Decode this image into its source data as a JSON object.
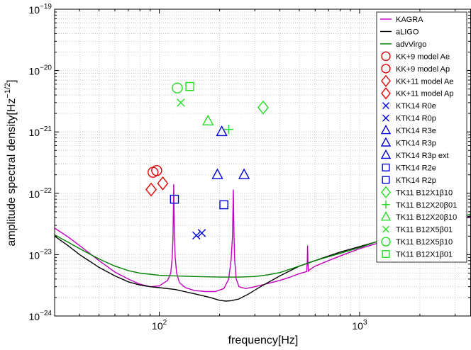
{
  "chart_data": {
    "type": "line",
    "title": "",
    "xlabel": "frequency[Hz]",
    "ylabel": "amplitude spectral density[Hz",
    "ylabel_sup": "−1/2",
    "ylabel_end": "]",
    "xscale": "log",
    "yscale": "log",
    "xlim": [
      30,
      3600
    ],
    "ylim": [
      1e-24,
      1e-19
    ],
    "grid": true,
    "legend_position": "top-right",
    "x_ticks": [
      {
        "value": 100,
        "base": "10",
        "exp": "2"
      },
      {
        "value": 1000,
        "base": "10",
        "exp": "3"
      }
    ],
    "y_ticks": [
      {
        "value": 1e-24,
        "base": "10",
        "exp": "−24"
      },
      {
        "value": 1e-23,
        "base": "10",
        "exp": "−23"
      },
      {
        "value": 1e-22,
        "base": "10",
        "exp": "−22"
      },
      {
        "value": 1e-21,
        "base": "10",
        "exp": "−21"
      },
      {
        "value": 1e-20,
        "base": "10",
        "exp": "−20"
      },
      {
        "value": 1e-19,
        "base": "10",
        "exp": "−19"
      }
    ],
    "series": [
      {
        "name": "KAGRA",
        "kind": "line",
        "color": "#bf00bf",
        "x": [
          30,
          35,
          40,
          50,
          60,
          70,
          80,
          90,
          100,
          110,
          114,
          116,
          117,
          118,
          119,
          120,
          122,
          126,
          135,
          150,
          170,
          190,
          210,
          222,
          228,
          232,
          234,
          236,
          238,
          242,
          250,
          270,
          300,
          350,
          400,
          450,
          500,
          545,
          548,
          550,
          552,
          555,
          560,
          600,
          700,
          800,
          900,
          1000,
          1200,
          1500,
          2000,
          2500,
          3000,
          3600
        ],
        "y": [
          2.7e-23,
          1.95e-23,
          1.4e-23,
          8e-24,
          5.2e-24,
          4e-24,
          3.3e-24,
          3e-24,
          3.1e-24,
          3.8e-24,
          5e-24,
          9e-24,
          2e-23,
          1.4e-22,
          2e-23,
          9e-24,
          5e-24,
          3.5e-24,
          2.9e-24,
          2.6e-24,
          2.5e-24,
          2.5e-24,
          2.8e-24,
          4e-24,
          8e-24,
          2e-23,
          1.15e-22,
          2e-23,
          8e-24,
          4e-24,
          3e-24,
          2.8e-24,
          3e-24,
          3.4e-24,
          3.8e-24,
          4.3e-24,
          4.9e-24,
          5.3e-24,
          8e-24,
          1.4e-23,
          8e-24,
          5.4e-24,
          5.6e-24,
          6.5e-24,
          8e-24,
          9.5e-24,
          1.1e-23,
          1.25e-23,
          1.5e-23,
          1.9e-23,
          2.5e-23,
          3e-23,
          3.5e-23,
          4.2e-23
        ]
      },
      {
        "name": "aLIGO",
        "kind": "line",
        "color": "#000000",
        "x": [
          30,
          35,
          40,
          50,
          60,
          70,
          80,
          90,
          100,
          120,
          150,
          180,
          200,
          215,
          230,
          250,
          280,
          320,
          400,
          500,
          600,
          700,
          800,
          1000,
          1200,
          1500,
          2000,
          2500,
          3000,
          3600
        ],
        "y": [
          2e-23,
          1.4e-23,
          1e-23,
          6.2e-24,
          4.5e-24,
          3.6e-24,
          3.2e-24,
          3e-24,
          2.9e-24,
          2.7e-24,
          2.3e-24,
          2e-24,
          1.8e-24,
          1.75e-24,
          1.78e-24,
          1.9e-24,
          2.3e-24,
          3e-24,
          4.5e-24,
          6.5e-24,
          8e-24,
          9.5e-24,
          1.1e-23,
          1.35e-23,
          1.6e-23,
          1.95e-23,
          2.5e-23,
          3.1e-23,
          3.6e-23,
          4.3e-23
        ]
      },
      {
        "name": "advVirgo",
        "kind": "line",
        "color": "#007f00",
        "x": [
          30,
          35,
          40,
          50,
          60,
          70,
          80,
          100,
          120,
          150,
          200,
          250,
          300,
          350,
          400,
          500,
          600,
          800,
          1000,
          1200,
          1500,
          2000,
          2500,
          3000,
          3600
        ],
        "y": [
          2.1e-23,
          1.6e-23,
          1.25e-23,
          8.5e-24,
          6.5e-24,
          5.5e-24,
          5e-24,
          4.6e-24,
          4.5e-24,
          4.4e-24,
          4.3e-24,
          4.3e-24,
          4.4e-24,
          4.7e-24,
          5.1e-24,
          6.5e-24,
          8e-24,
          1.05e-23,
          1.3e-23,
          1.6e-23,
          2e-23,
          2.6e-23,
          3.2e-23,
          3.8e-23,
          4.6e-23
        ]
      },
      {
        "name": "KK+9 model Ae",
        "kind": "marker",
        "marker": "circle",
        "color": "#e00000",
        "x": [
          93
        ],
        "y": [
          2.2e-22
        ]
      },
      {
        "name": "KK+9 model Ap",
        "kind": "marker",
        "marker": "circle",
        "color": "#e00000",
        "x": [
          97
        ],
        "y": [
          2.35e-22
        ]
      },
      {
        "name": "KK+11 model Ae",
        "kind": "marker",
        "marker": "diamond",
        "color": "#e00000",
        "x": [
          91
        ],
        "y": [
          1.15e-22
        ]
      },
      {
        "name": "KK+11 model Ap",
        "kind": "marker",
        "marker": "diamond",
        "color": "#e00000",
        "x": [
          104
        ],
        "y": [
          1.45e-22
        ]
      },
      {
        "name": "KTK14 R0e",
        "kind": "marker",
        "marker": "x",
        "color": "#0000e0",
        "x": [
          153
        ],
        "y": [
          2.05e-23
        ]
      },
      {
        "name": "KTK14 R0p",
        "kind": "marker",
        "marker": "x",
        "color": "#0000e0",
        "x": [
          163
        ],
        "y": [
          2.25e-23
        ]
      },
      {
        "name": "KTK14 R3e",
        "kind": "marker",
        "marker": "triangle",
        "color": "#0000e0",
        "x": [
          195
        ],
        "y": [
          2e-22
        ]
      },
      {
        "name": "KTK14 R3p",
        "kind": "marker",
        "marker": "triangle",
        "color": "#0000e0",
        "x": [
          205
        ],
        "y": [
          1e-21
        ]
      },
      {
        "name": "KTK14 R3p ext",
        "kind": "marker",
        "marker": "triangle",
        "color": "#0000e0",
        "x": [
          265
        ],
        "y": [
          2e-22
        ]
      },
      {
        "name": "KTK14 R2e",
        "kind": "marker",
        "marker": "square",
        "color": "#0000e0",
        "x": [
          119
        ],
        "y": [
          8e-23
        ]
      },
      {
        "name": "KTK14 R2p",
        "kind": "marker",
        "marker": "square",
        "color": "#0000e0",
        "x": [
          210
        ],
        "y": [
          6.5e-23
        ]
      },
      {
        "name": "TK11 B12X1β10",
        "kind": "marker",
        "marker": "diamond",
        "color": "#22dd22",
        "x": [
          330
        ],
        "y": [
          2.5e-21
        ]
      },
      {
        "name": "TK11 B12X20β01",
        "kind": "marker",
        "marker": "plus",
        "color": "#22dd22",
        "x": [
          222
        ],
        "y": [
          1.1e-21
        ]
      },
      {
        "name": "TK11 B12X20β10",
        "kind": "marker",
        "marker": "triangle",
        "color": "#22dd22",
        "x": [
          175
        ],
        "y": [
          1.5e-21
        ]
      },
      {
        "name": "TK11 B12X5β01",
        "kind": "marker",
        "marker": "x",
        "color": "#22dd22",
        "x": [
          128
        ],
        "y": [
          3e-21
        ]
      },
      {
        "name": "TK11 B12X5β10",
        "kind": "marker",
        "marker": "circle",
        "color": "#22dd22",
        "x": [
          123
        ],
        "y": [
          5.2e-21
        ]
      },
      {
        "name": "TK11 B12X1β01",
        "kind": "marker",
        "marker": "square",
        "color": "#22dd22",
        "x": [
          142
        ],
        "y": [
          5.5e-21
        ]
      }
    ]
  }
}
